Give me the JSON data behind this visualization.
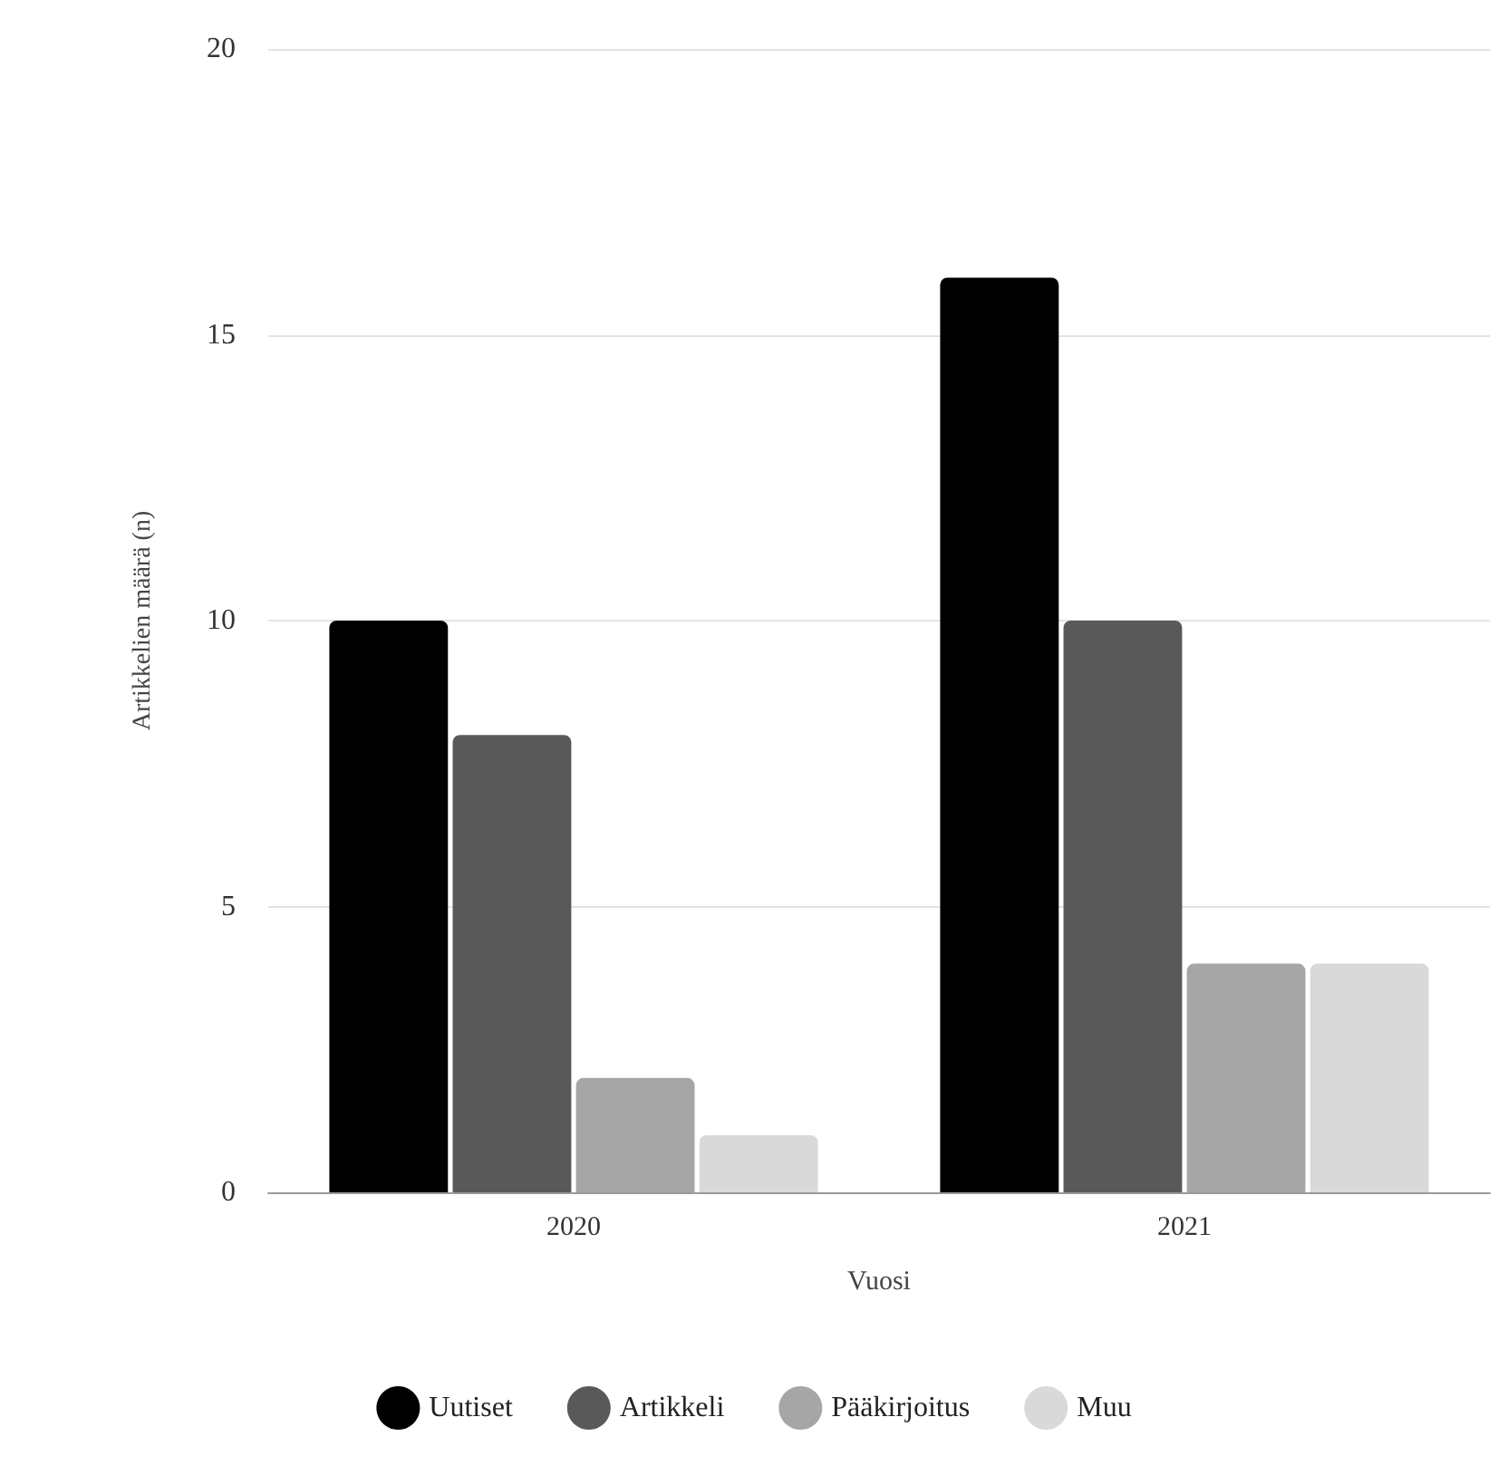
{
  "chart_data": {
    "type": "bar",
    "xlabel": "Vuosi",
    "ylabel": "Artikkelien määrä (n)",
    "categories": [
      "2020",
      "2021"
    ],
    "series": [
      {
        "name": "Uutiset",
        "color": "#000000",
        "values": [
          10,
          16
        ]
      },
      {
        "name": "Artikkeli",
        "color": "#595959",
        "values": [
          8,
          10
        ]
      },
      {
        "name": "Pääkirjoitus",
        "color": "#a6a6a6",
        "values": [
          2,
          4
        ]
      },
      {
        "name": "Muu",
        "color": "#d9d9d9",
        "values": [
          1,
          4
        ]
      }
    ],
    "ylim": [
      0,
      20
    ],
    "yticks": [
      0,
      5,
      10,
      15,
      20
    ],
    "grid": "y",
    "legend": "bottom"
  }
}
